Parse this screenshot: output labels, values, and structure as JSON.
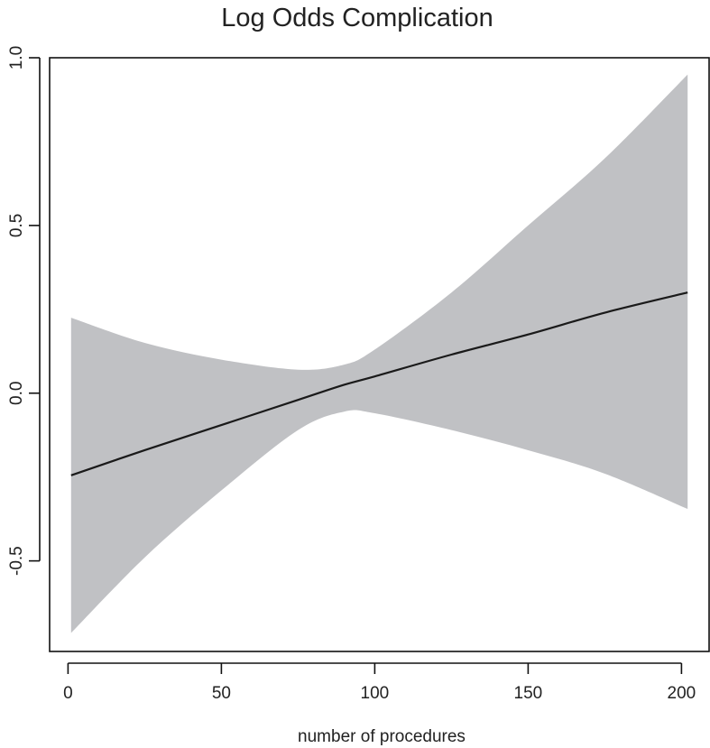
{
  "chart_data": {
    "type": "area",
    "title": "Log Odds Complication",
    "xlabel": "number of procedures",
    "ylabel": "",
    "xlim": [
      -6,
      209
    ],
    "ylim": [
      -0.77,
      1.0
    ],
    "x_ticks": [
      0,
      50,
      100,
      150,
      200
    ],
    "x_tick_labels": [
      "0",
      "50",
      "100",
      "150",
      "200"
    ],
    "y_ticks": [
      -0.5,
      0.0,
      0.5,
      1.0
    ],
    "y_tick_labels": [
      "-0.5",
      "0.0",
      "0.5",
      "1.0"
    ],
    "grid": false,
    "legend": "none",
    "band_color": "#c0c1c4",
    "line_color": "#1a1a1a",
    "x": [
      1,
      25,
      50,
      75,
      90,
      100,
      125,
      150,
      175,
      202
    ],
    "fit": [
      -0.245,
      -0.17,
      -0.095,
      -0.02,
      0.025,
      0.05,
      0.115,
      0.175,
      0.24,
      0.3
    ],
    "upper": [
      0.225,
      0.15,
      0.1,
      0.07,
      0.085,
      0.13,
      0.3,
      0.5,
      0.7,
      0.95
    ],
    "lower": [
      -0.715,
      -0.49,
      -0.29,
      -0.11,
      -0.055,
      -0.06,
      -0.11,
      -0.17,
      -0.24,
      -0.345
    ]
  }
}
